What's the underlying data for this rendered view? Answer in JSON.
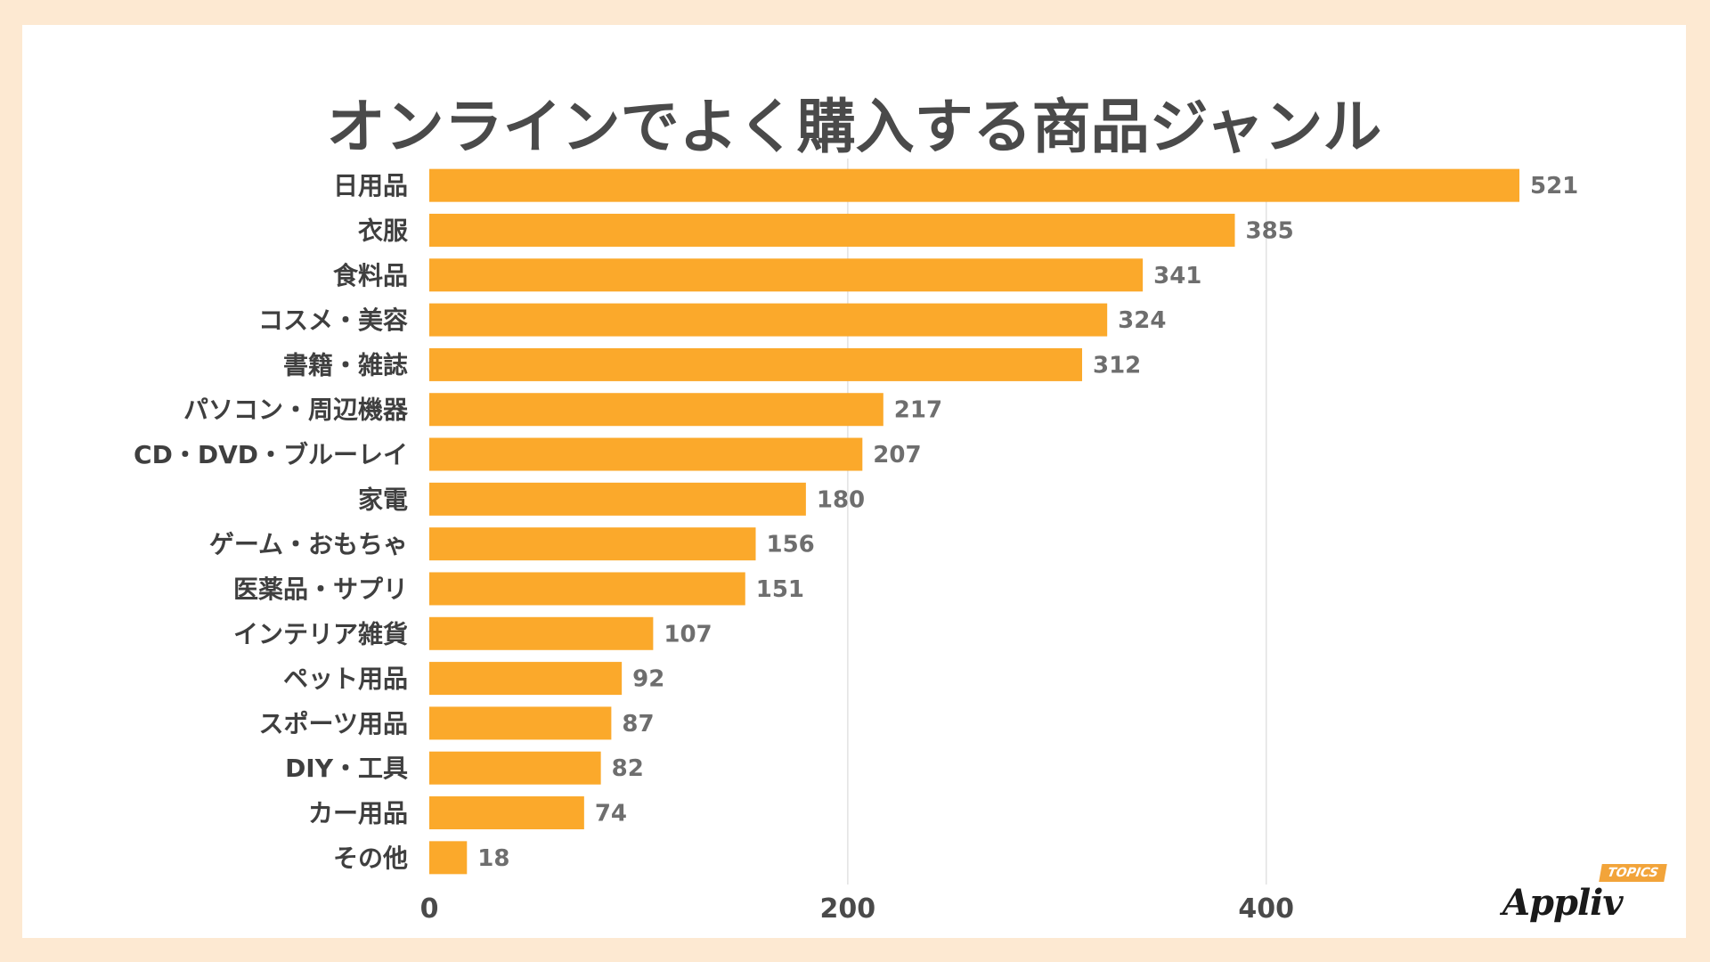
{
  "chart_data": {
    "type": "bar",
    "orientation": "horizontal",
    "title": "オンラインでよく購入する商品ジャンル",
    "categories": [
      "日用品",
      "衣服",
      "食料品",
      "コスメ・美容",
      "書籍・雑誌",
      "パソコン・周辺機器",
      "CD・DVD・ブルーレイ",
      "家電",
      "ゲーム・おもちゃ",
      "医薬品・サプリ",
      "インテリア雑貨",
      "ペット用品",
      "スポーツ用品",
      "DIY・工具",
      "カー用品",
      "その他"
    ],
    "values": [
      521,
      385,
      341,
      324,
      312,
      217,
      207,
      180,
      156,
      151,
      107,
      92,
      87,
      82,
      74,
      18
    ],
    "xticks": [
      0,
      200,
      400
    ],
    "xlim": [
      0,
      521
    ],
    "grid": true,
    "legend": "none",
    "bar_color": "#fba92b",
    "grid_color": "#e2e2e2"
  },
  "logo": {
    "text": "Appliv",
    "badge": "TOPICS"
  }
}
